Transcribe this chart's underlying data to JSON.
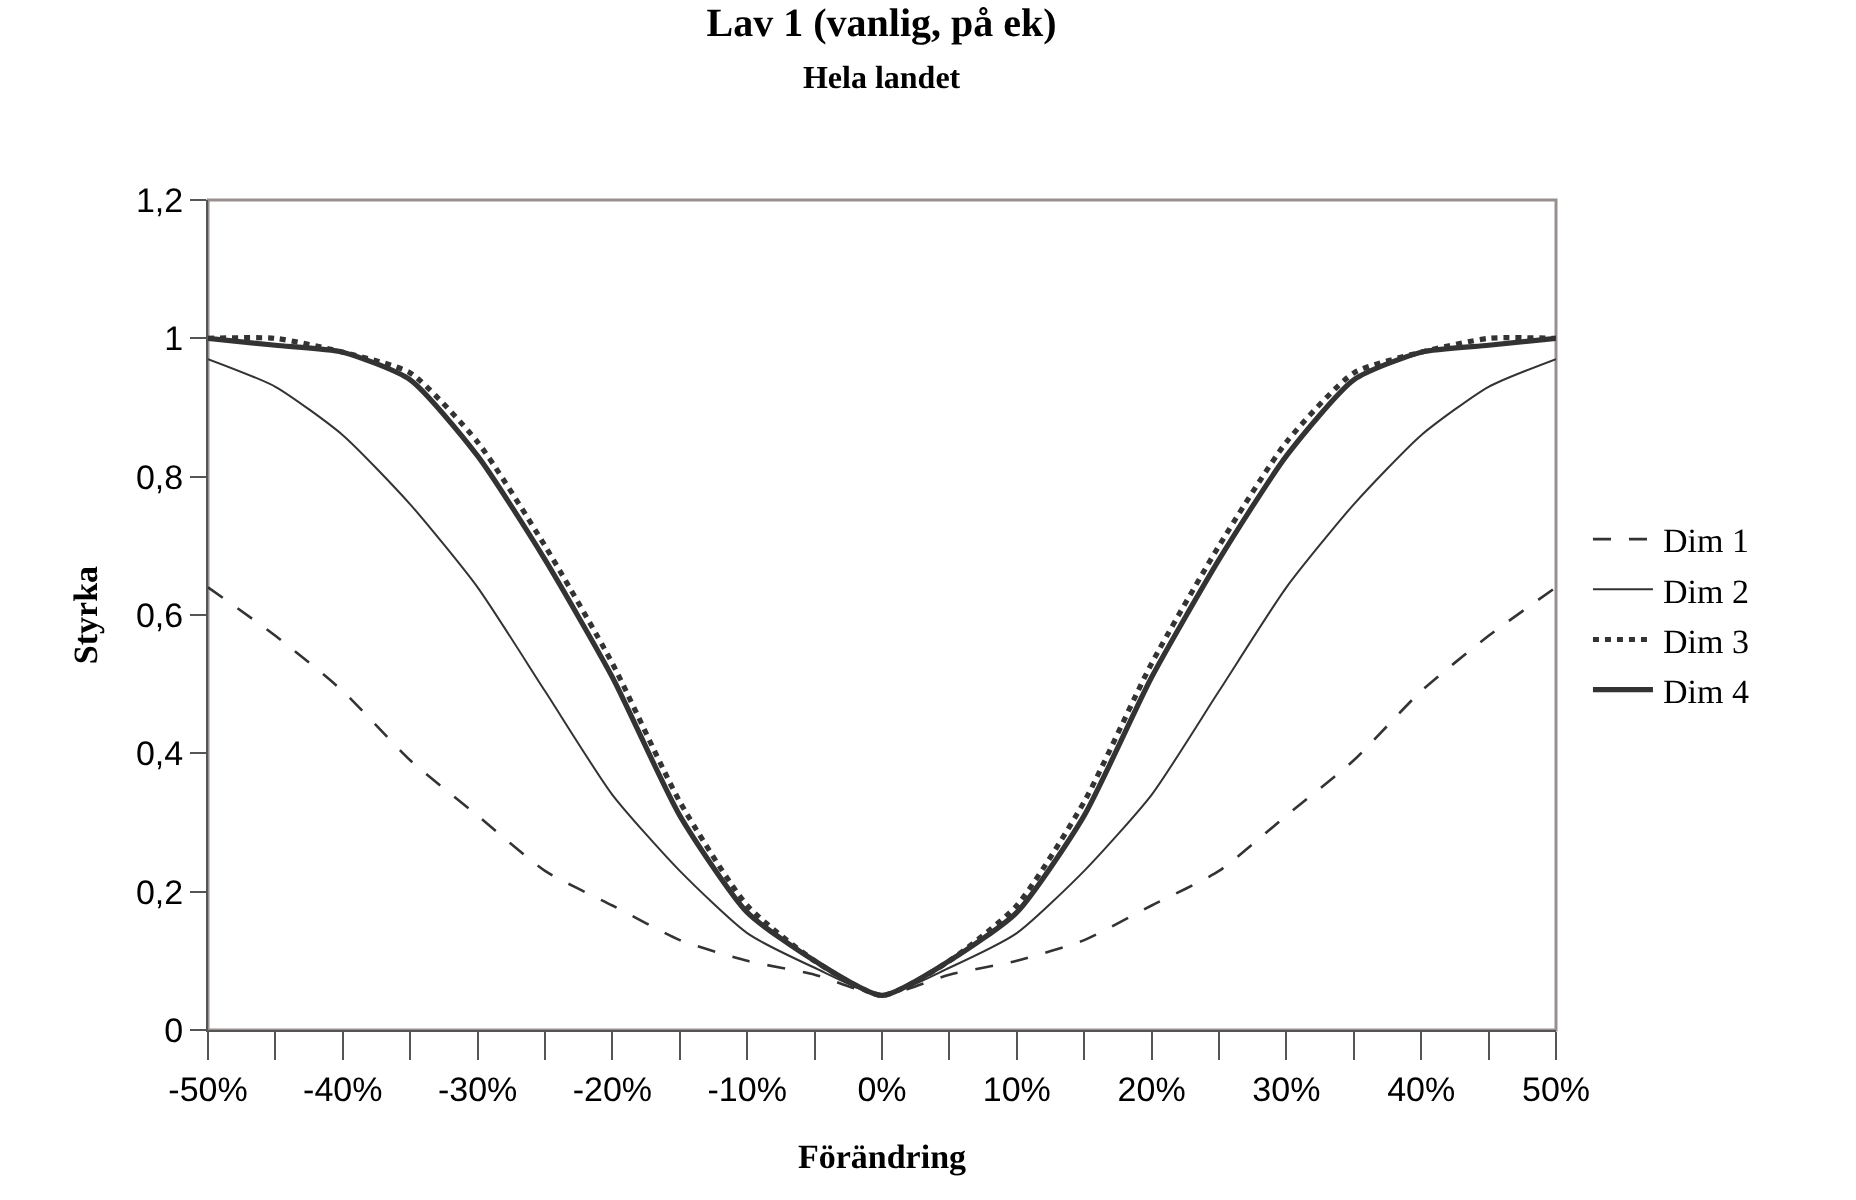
{
  "chart_data": {
    "type": "line",
    "title": "Lav 1 (vanlig, på ek)",
    "subtitle": "Hela landet",
    "xlabel": "Förändring",
    "ylabel": "Styrka",
    "x": [
      -50,
      -45,
      -40,
      -35,
      -30,
      -25,
      -20,
      -15,
      -10,
      -5,
      0,
      5,
      10,
      15,
      20,
      25,
      30,
      35,
      40,
      45,
      50
    ],
    "series": [
      {
        "name": "Dim 1",
        "color": "#333333",
        "line_style": "dashed",
        "values": [
          0.64,
          0.57,
          0.49,
          0.39,
          0.31,
          0.23,
          0.18,
          0.13,
          0.1,
          0.08,
          0.05,
          0.08,
          0.1,
          0.13,
          0.18,
          0.23,
          0.31,
          0.39,
          0.49,
          0.57,
          0.64
        ]
      },
      {
        "name": "Dim 2",
        "color": "#333333",
        "line_style": "solid",
        "values": [
          0.97,
          0.93,
          0.86,
          0.76,
          0.64,
          0.49,
          0.34,
          0.23,
          0.14,
          0.09,
          0.05,
          0.09,
          0.14,
          0.23,
          0.34,
          0.49,
          0.64,
          0.76,
          0.86,
          0.93,
          0.97
        ]
      },
      {
        "name": "Dim 3",
        "color": "#333333",
        "line_style": "dotted",
        "values": [
          1.0,
          1.0,
          0.98,
          0.95,
          0.85,
          0.7,
          0.53,
          0.33,
          0.18,
          0.1,
          0.05,
          0.1,
          0.18,
          0.33,
          0.53,
          0.7,
          0.85,
          0.95,
          0.98,
          1.0,
          1.0
        ]
      },
      {
        "name": "Dim 4",
        "color": "#333333",
        "line_style": "solid",
        "values": [
          1.0,
          0.99,
          0.98,
          0.94,
          0.83,
          0.68,
          0.51,
          0.31,
          0.17,
          0.1,
          0.05,
          0.1,
          0.17,
          0.31,
          0.51,
          0.68,
          0.83,
          0.94,
          0.98,
          0.99,
          1.0
        ]
      }
    ],
    "xlim": [
      -50,
      50
    ],
    "xticks": [
      {
        "value": -50,
        "label": "-50%"
      },
      {
        "value": -45,
        "label": null
      },
      {
        "value": -40,
        "label": "-40%"
      },
      {
        "value": -35,
        "label": null
      },
      {
        "value": -30,
        "label": "-30%"
      },
      {
        "value": -25,
        "label": null
      },
      {
        "value": -20,
        "label": "-20%"
      },
      {
        "value": -15,
        "label": null
      },
      {
        "value": -10,
        "label": "-10%"
      },
      {
        "value": -5,
        "label": null
      },
      {
        "value": 0,
        "label": "0%"
      },
      {
        "value": 5,
        "label": null
      },
      {
        "value": 10,
        "label": "10%"
      },
      {
        "value": 15,
        "label": null
      },
      {
        "value": 20,
        "label": "20%"
      },
      {
        "value": 25,
        "label": null
      },
      {
        "value": 30,
        "label": "30%"
      },
      {
        "value": 35,
        "label": null
      },
      {
        "value": 40,
        "label": "40%"
      },
      {
        "value": 45,
        "label": null
      },
      {
        "value": 50,
        "label": "50%"
      }
    ],
    "ylim": [
      0,
      1.2
    ],
    "yticks": [
      {
        "value": 0,
        "label": "0"
      },
      {
        "value": 0.2,
        "label": "0,2"
      },
      {
        "value": 0.4,
        "label": "0,4"
      },
      {
        "value": 0.6,
        "label": "0,6"
      },
      {
        "value": 0.8,
        "label": "0,8"
      },
      {
        "value": 1,
        "label": "1"
      },
      {
        "value": 1.2,
        "label": "1,2"
      }
    ],
    "grid": false,
    "legend": "right",
    "marker": "none"
  }
}
